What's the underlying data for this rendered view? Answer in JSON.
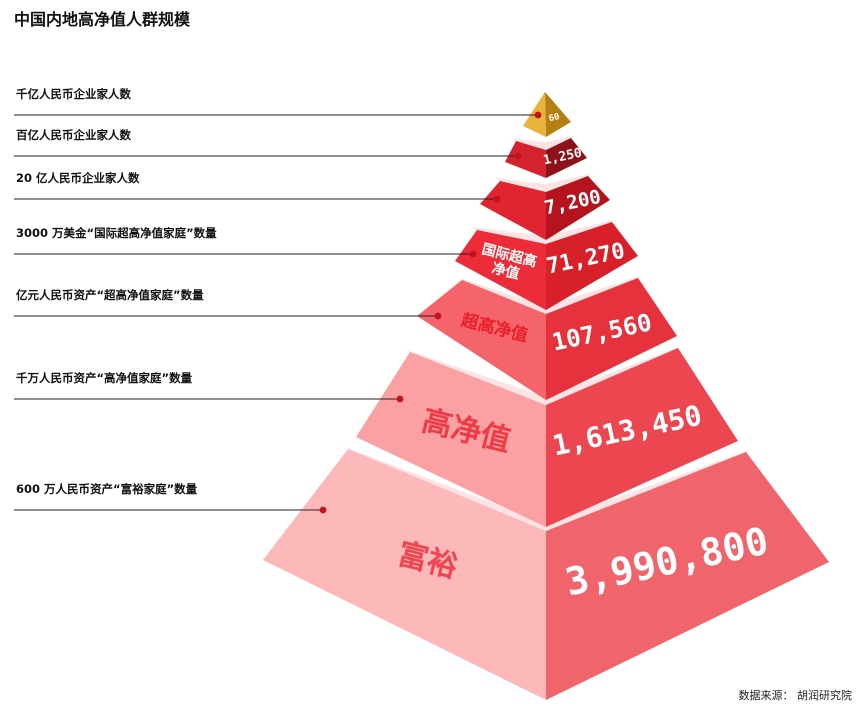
{
  "title": "中国内地高净值人群规模",
  "source": "数据来源： 胡润研究院",
  "chart_data": {
    "type": "pyramid",
    "tiers": [
      {
        "label": "千亿人民币企业家人数",
        "value": 60,
        "value_text": "60",
        "category": "",
        "front_color": "#e8b43c",
        "side_color": "#b57f14"
      },
      {
        "label": "百亿人民币企业家人数",
        "value": 1250,
        "value_text": "1,250",
        "category": "",
        "front_color": "#d4232e",
        "side_color": "#8d1119"
      },
      {
        "label": "20 亿人民币企业家人数",
        "value": 7200,
        "value_text": "7,200",
        "category": "",
        "front_color": "#e02430",
        "side_color": "#b5141e"
      },
      {
        "label": "3000 万美金“国际超高净值家庭”数量",
        "value": 71270,
        "value_text": "71,270",
        "category": "国际超高净值",
        "front_color": "#ec2c38",
        "side_color": "#d8202b"
      },
      {
        "label": "亿元人民币资产“超高净值家庭”数量",
        "value": 107560,
        "value_text": "107,560",
        "category": "超高净值",
        "front_color": "#f5646a",
        "side_color": "#e6323c"
      },
      {
        "label": "千万人民币资产“高净值家庭”数量",
        "value": 1613450,
        "value_text": "1,613,450",
        "category": "高净值",
        "front_color": "#fba0a3",
        "side_color": "#ec4750"
      },
      {
        "label": "600 万人民币资产“富裕家庭”数量",
        "value": 3990800,
        "value_text": "3,990,800",
        "category": "富裕",
        "front_color": "#fdb8ba",
        "side_color": "#f0656b"
      }
    ]
  }
}
